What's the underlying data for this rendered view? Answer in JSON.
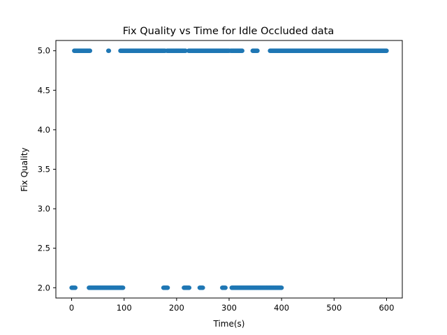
{
  "chart_data": {
    "type": "scatter",
    "title": "Fix Quality vs Time for Idle Occluded data",
    "xlabel": "Time(s)",
    "ylabel": "Fix Quality",
    "xlim": [
      -30,
      630
    ],
    "ylim": [
      1.87,
      5.13
    ],
    "x_ticks": [
      0,
      100,
      200,
      300,
      400,
      500,
      600
    ],
    "x_tick_labels": [
      "0",
      "100",
      "200",
      "300",
      "400",
      "500",
      "600"
    ],
    "y_ticks": [
      2.0,
      2.5,
      3.0,
      3.5,
      4.0,
      4.5,
      5.0
    ],
    "y_tick_labels": [
      "2.0",
      "2.5",
      "3.0",
      "3.5",
      "4.0",
      "4.5",
      "5.0"
    ],
    "grid": false,
    "marker_color": "#1f77b4",
    "series": [
      {
        "segments": [
          {
            "y": 5.0,
            "x_start": 5,
            "x_end": 35
          },
          {
            "y": 5.0,
            "x_start": 70,
            "x_end": 71
          },
          {
            "y": 5.0,
            "x_start": 93,
            "x_end": 178
          },
          {
            "y": 5.0,
            "x_start": 182,
            "x_end": 217
          },
          {
            "y": 5.0,
            "x_start": 223,
            "x_end": 300
          },
          {
            "y": 5.0,
            "x_start": 303,
            "x_end": 325
          },
          {
            "y": 5.0,
            "x_start": 345,
            "x_end": 354
          },
          {
            "y": 5.0,
            "x_start": 378,
            "x_end": 600
          },
          {
            "y": 2.0,
            "x_start": 0,
            "x_end": 7
          },
          {
            "y": 2.0,
            "x_start": 33,
            "x_end": 98
          },
          {
            "y": 2.0,
            "x_start": 175,
            "x_end": 183
          },
          {
            "y": 2.0,
            "x_start": 214,
            "x_end": 224
          },
          {
            "y": 2.0,
            "x_start": 244,
            "x_end": 250
          },
          {
            "y": 2.0,
            "x_start": 287,
            "x_end": 293
          },
          {
            "y": 2.0,
            "x_start": 305,
            "x_end": 400
          }
        ]
      }
    ]
  }
}
